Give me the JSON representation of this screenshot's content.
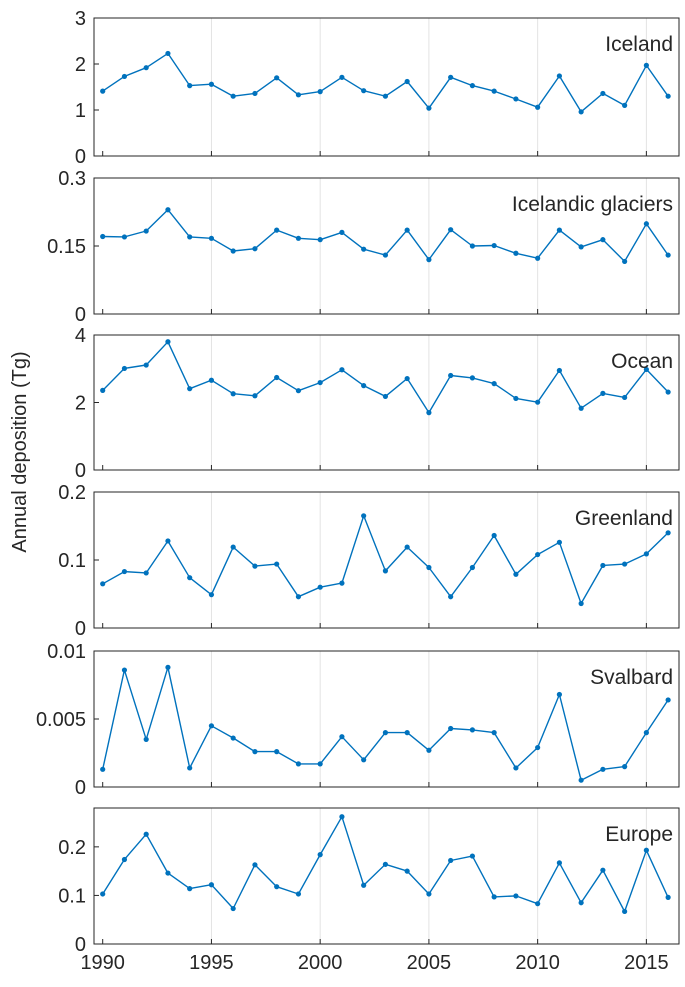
{
  "figure": {
    "ylabel": "Annual deposition (Tg)",
    "line_color": "#0072BD",
    "grid_color": "#e3e3e3",
    "axis_color": "#262626"
  },
  "chart_data": [
    {
      "type": "line",
      "title": "Iceland",
      "x": [
        1990,
        1991,
        1992,
        1993,
        1994,
        1995,
        1996,
        1997,
        1998,
        1999,
        2000,
        2001,
        2002,
        2003,
        2004,
        2005,
        2006,
        2007,
        2008,
        2009,
        2010,
        2011,
        2012,
        2013,
        2014,
        2015,
        2016
      ],
      "y": [
        1.41,
        1.73,
        1.92,
        2.23,
        1.53,
        1.56,
        1.3,
        1.36,
        1.7,
        1.33,
        1.4,
        1.71,
        1.42,
        1.3,
        1.62,
        1.04,
        1.71,
        1.53,
        1.41,
        1.24,
        1.06,
        1.74,
        0.96,
        1.36,
        1.1,
        1.97,
        1.3
      ],
      "xlim": [
        1989.6,
        2016.5
      ],
      "ylim": [
        0,
        3
      ],
      "yticks": [
        0,
        1,
        2,
        3
      ],
      "ytick_labels": [
        "0",
        "1",
        "2",
        "3"
      ],
      "xticks": [
        1990,
        1995,
        2000,
        2005,
        2010,
        2015
      ],
      "grid": "x"
    },
    {
      "type": "line",
      "title": "Icelandic glaciers",
      "x": [
        1990,
        1991,
        1992,
        1993,
        1994,
        1995,
        1996,
        1997,
        1998,
        1999,
        2000,
        2001,
        2002,
        2003,
        2004,
        2005,
        2006,
        2007,
        2008,
        2009,
        2010,
        2011,
        2012,
        2013,
        2014,
        2015,
        2016
      ],
      "y": [
        0.171,
        0.17,
        0.183,
        0.23,
        0.17,
        0.167,
        0.139,
        0.144,
        0.185,
        0.167,
        0.164,
        0.18,
        0.143,
        0.13,
        0.185,
        0.12,
        0.186,
        0.15,
        0.151,
        0.134,
        0.123,
        0.185,
        0.148,
        0.164,
        0.116,
        0.199,
        0.13
      ],
      "xlim": [
        1989.6,
        2016.5
      ],
      "ylim": [
        0,
        0.3
      ],
      "yticks": [
        0,
        0.15,
        0.3
      ],
      "ytick_labels": [
        "0",
        "0.15",
        "0.3"
      ],
      "xticks": [
        1990,
        1995,
        2000,
        2005,
        2010,
        2015
      ],
      "grid": "x"
    },
    {
      "type": "line",
      "title": "Ocean",
      "x": [
        1990,
        1991,
        1992,
        1993,
        1994,
        1995,
        1996,
        1997,
        1998,
        1999,
        2000,
        2001,
        2002,
        2003,
        2004,
        2005,
        2006,
        2007,
        2008,
        2009,
        2010,
        2011,
        2012,
        2013,
        2014,
        2015,
        2016
      ],
      "y": [
        2.36,
        3.01,
        3.11,
        3.8,
        2.41,
        2.66,
        2.26,
        2.2,
        2.74,
        2.35,
        2.59,
        2.97,
        2.5,
        2.18,
        2.71,
        1.7,
        2.8,
        2.73,
        2.56,
        2.12,
        2.01,
        2.95,
        1.83,
        2.27,
        2.15,
        2.98,
        2.31
      ],
      "xlim": [
        1989.6,
        2016.5
      ],
      "ylim": [
        0,
        4
      ],
      "yticks": [
        0,
        2,
        4
      ],
      "ytick_labels": [
        "0",
        "2",
        "4"
      ],
      "xticks": [
        1990,
        1995,
        2000,
        2005,
        2010,
        2015
      ],
      "grid": "x"
    },
    {
      "type": "line",
      "title": "Greenland",
      "x": [
        1990,
        1991,
        1992,
        1993,
        1994,
        1995,
        1996,
        1997,
        1998,
        1999,
        2000,
        2001,
        2002,
        2003,
        2004,
        2005,
        2006,
        2007,
        2008,
        2009,
        2010,
        2011,
        2012,
        2013,
        2014,
        2015,
        2016
      ],
      "y": [
        0.065,
        0.083,
        0.081,
        0.128,
        0.074,
        0.049,
        0.119,
        0.091,
        0.094,
        0.046,
        0.06,
        0.066,
        0.165,
        0.084,
        0.119,
        0.089,
        0.046,
        0.089,
        0.136,
        0.079,
        0.108,
        0.126,
        0.036,
        0.092,
        0.094,
        0.109,
        0.14
      ],
      "xlim": [
        1989.6,
        2016.5
      ],
      "ylim": [
        0,
        0.2
      ],
      "yticks": [
        0,
        0.1,
        0.2
      ],
      "ytick_labels": [
        "0",
        "0.1",
        "0.2"
      ],
      "xticks": [
        1990,
        1995,
        2000,
        2005,
        2010,
        2015
      ],
      "grid": "x"
    },
    {
      "type": "line",
      "title": "Svalbard",
      "x": [
        1990,
        1991,
        1992,
        1993,
        1994,
        1995,
        1996,
        1997,
        1998,
        1999,
        2000,
        2001,
        2002,
        2003,
        2004,
        2005,
        2006,
        2007,
        2008,
        2009,
        2010,
        2011,
        2012,
        2013,
        2014,
        2015,
        2016
      ],
      "y": [
        0.0013,
        0.0086,
        0.0035,
        0.0088,
        0.0014,
        0.0045,
        0.0036,
        0.0026,
        0.0026,
        0.0017,
        0.0017,
        0.0037,
        0.002,
        0.004,
        0.004,
        0.0027,
        0.0043,
        0.0042,
        0.004,
        0.0014,
        0.0029,
        0.0068,
        0.0005,
        0.0013,
        0.0015,
        0.004,
        0.0064
      ],
      "xlim": [
        1989.6,
        2016.5
      ],
      "ylim": [
        0,
        0.01
      ],
      "yticks": [
        0,
        0.005,
        0.01
      ],
      "ytick_labels": [
        "0",
        "0.005",
        "0.01"
      ],
      "xticks": [
        1990,
        1995,
        2000,
        2005,
        2010,
        2015
      ],
      "grid": "x"
    },
    {
      "type": "line",
      "title": "Europe",
      "x": [
        1990,
        1991,
        1992,
        1993,
        1994,
        1995,
        1996,
        1997,
        1998,
        1999,
        2000,
        2001,
        2002,
        2003,
        2004,
        2005,
        2006,
        2007,
        2008,
        2009,
        2010,
        2011,
        2012,
        2013,
        2014,
        2015,
        2016
      ],
      "y": [
        0.103,
        0.174,
        0.226,
        0.146,
        0.114,
        0.122,
        0.073,
        0.163,
        0.118,
        0.103,
        0.184,
        0.262,
        0.121,
        0.164,
        0.15,
        0.103,
        0.172,
        0.181,
        0.097,
        0.099,
        0.083,
        0.167,
        0.085,
        0.152,
        0.067,
        0.193,
        0.096
      ],
      "xlim": [
        1989.6,
        2016.5
      ],
      "ylim": [
        0,
        0.28
      ],
      "yticks": [
        0,
        0.1,
        0.2
      ],
      "ytick_labels": [
        "0",
        "0.1",
        "0.2"
      ],
      "xticks": [
        1990,
        1995,
        2000,
        2005,
        2010,
        2015
      ],
      "xtick_labels": [
        "1990",
        "1995",
        "2000",
        "2005",
        "2010",
        "2015"
      ],
      "grid": "x"
    }
  ]
}
